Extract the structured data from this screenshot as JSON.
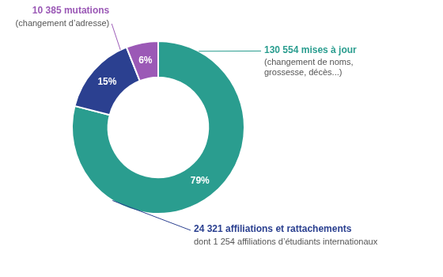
{
  "chart_data": {
    "type": "doughnut",
    "values": [
      79,
      15,
      6
    ],
    "value_labels": [
      "79%",
      "15%",
      "6%"
    ],
    "colors": [
      "#2a9d8f",
      "#2b4090",
      "#9b59b6"
    ],
    "data_labels": true,
    "annotations": [
      {
        "title": "130 554 mises à jour",
        "subtitle": "(changement de noms,\ngrossesse, décès...)",
        "color": "#2a9d8f"
      },
      {
        "title": "10 385 mutations",
        "subtitle": "(changement d’adresse)",
        "color": "#9b59b6"
      },
      {
        "title": "24 321 affiliations et rattachements",
        "subtitle": "dont 1 254 affiliations d’étudiants internationaux",
        "color": "#2b4090"
      }
    ]
  }
}
